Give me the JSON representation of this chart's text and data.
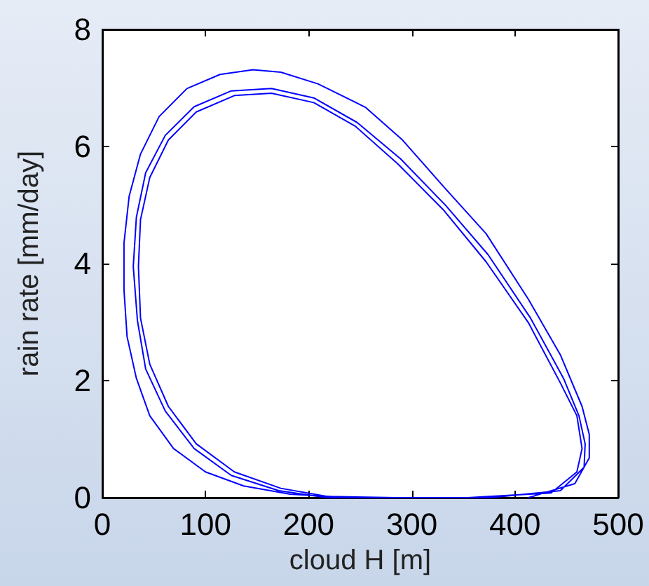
{
  "chart_data": {
    "type": "line",
    "xlabel": "cloud H [m]",
    "ylabel": "rain rate [mm/day]",
    "xlim": [
      0,
      500
    ],
    "xticks": [
      0,
      100,
      200,
      300,
      400,
      500
    ],
    "ylim": [
      0,
      8
    ],
    "yticks": [
      0,
      2,
      4,
      6,
      8
    ],
    "grid": false,
    "marker": "none",
    "line_style": "solid",
    "series": [
      {
        "color": "#0000ff",
        "x": [
          413,
          458,
          472,
          472,
          465,
          444,
          413,
          372,
          331,
          291,
          255,
          209,
          173,
          146,
          114,
          82,
          55,
          37,
          26,
          21,
          21,
          24,
          33,
          46,
          69,
          100,
          137,
          182,
          241,
          376,
          444,
          467,
          468,
          462,
          447,
          415,
          374,
          333,
          289,
          247,
          205,
          164,
          125,
          89,
          61,
          42,
          33,
          30,
          34,
          42,
          61,
          89,
          125,
          171,
          218,
          354,
          435,
          460,
          465,
          460,
          444,
          413,
          372,
          331,
          286,
          245,
          205,
          164,
          128,
          91,
          64,
          46,
          37,
          35,
          37,
          46,
          64,
          91,
          128,
          173,
          218,
          285
        ],
        "values": [
          0,
          0.24,
          0.68,
          1.08,
          1.56,
          2.44,
          3.39,
          4.51,
          5.31,
          6.11,
          6.67,
          7.07,
          7.27,
          7.31,
          7.23,
          6.99,
          6.51,
          5.87,
          5.15,
          4.35,
          3.55,
          2.75,
          2.04,
          1.4,
          0.84,
          0.44,
          0.2,
          0.06,
          0,
          0,
          0.12,
          0.52,
          0.92,
          1.4,
          2.04,
          3.07,
          4.15,
          4.99,
          5.79,
          6.41,
          6.83,
          6.99,
          6.95,
          6.68,
          6.19,
          5.55,
          4.79,
          3.95,
          3.03,
          2.2,
          1.48,
          0.84,
          0.38,
          0.12,
          0,
          0,
          0.08,
          0.44,
          0.84,
          1.4,
          1.96,
          2.99,
          4.03,
          4.91,
          5.71,
          6.35,
          6.75,
          6.91,
          6.87,
          6.59,
          6.11,
          5.47,
          4.75,
          3.95,
          3.07,
          2.28,
          1.56,
          0.92,
          0.44,
          0.16,
          0.02,
          0
        ]
      }
    ]
  }
}
